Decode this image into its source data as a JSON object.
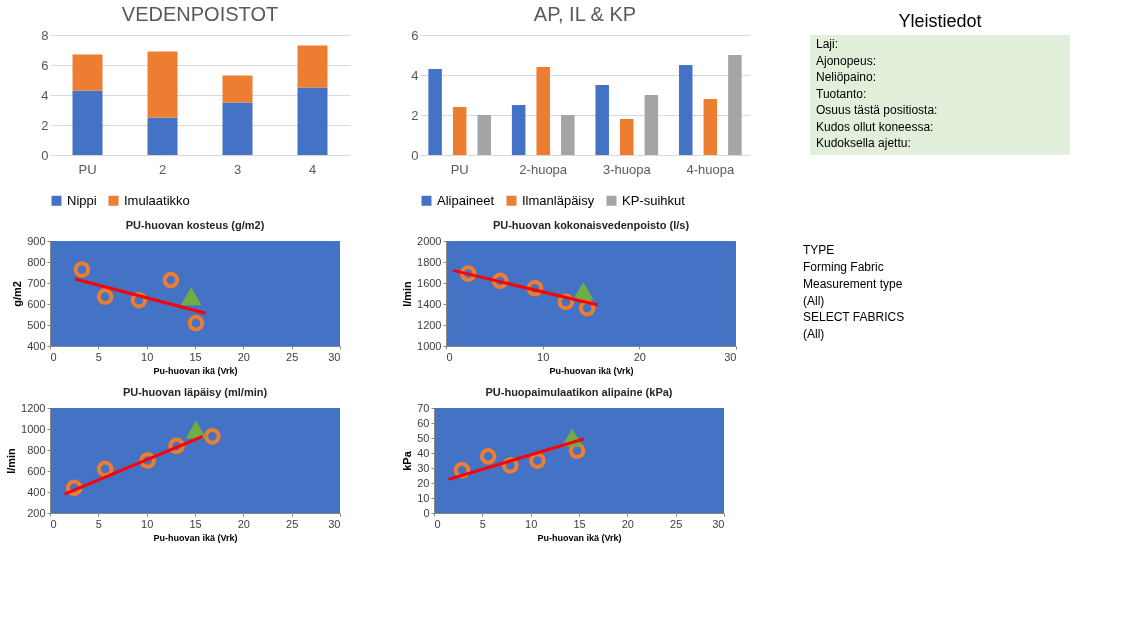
{
  "chart_data": [
    {
      "type": "bar",
      "title": "VEDENPOISTOT",
      "stacked": true,
      "categories": [
        "PU",
        "2",
        "3",
        "4"
      ],
      "ylim": [
        0,
        8
      ],
      "yticks": [
        0,
        2,
        4,
        6,
        8
      ],
      "grid": "y",
      "legend": "bottom",
      "series": [
        {
          "name": "Nippi",
          "color": "#4472c4",
          "values": [
            4.3,
            2.5,
            3.5,
            4.5
          ]
        },
        {
          "name": "Imulaatikko",
          "color": "#ed7d31",
          "values": [
            2.4,
            4.4,
            1.8,
            2.8
          ]
        }
      ]
    },
    {
      "type": "bar",
      "title": "AP, IL & KP",
      "categories": [
        "PU",
        "2-huopa",
        "3-huopa",
        "4-huopa"
      ],
      "ylim": [
        0,
        6
      ],
      "yticks": [
        0,
        2,
        4,
        6
      ],
      "grid": "y",
      "legend": "bottom",
      "series": [
        {
          "name": "Alipaineet",
          "color": "#4472c4",
          "values": [
            4.3,
            2.5,
            3.5,
            4.5
          ]
        },
        {
          "name": "Ilmanläpäisy",
          "color": "#ed7d31",
          "values": [
            2.4,
            4.4,
            1.8,
            2.8
          ]
        },
        {
          "name": "KP-suihkut",
          "color": "#a5a5a5",
          "values": [
            2,
            2,
            3,
            5
          ]
        }
      ]
    },
    {
      "type": "other",
      "title": "Yleistiedot",
      "annotations": [
        "Laji:",
        "Ajonopeus:",
        "Neliöpaino:",
        "Tuotanto:",
        "Osuus tästä positiosta:",
        "Kudos ollut koneessa:",
        "Kudoksella ajettu:"
      ]
    },
    {
      "type": "scatter",
      "title": "PU-huovan kosteus (g/m2)",
      "xlabel": "Pu-huovan ikä (Vrk)",
      "ylabel": "g/m2",
      "xlim": [
        0,
        30
      ],
      "xticks": [
        0,
        5,
        10,
        15,
        20,
        25,
        30
      ],
      "ylim": [
        400,
        900
      ],
      "yticks": [
        400,
        500,
        600,
        700,
        800,
        900
      ],
      "grid": false,
      "series": [
        {
          "type": "scatter",
          "marker": "circle",
          "color": "#ed7d31",
          "x": [
            3.3,
            5.7,
            9.2,
            12.5,
            15.1
          ],
          "values": [
            764,
            635,
            618,
            714,
            509
          ]
        },
        {
          "type": "scatter",
          "marker": "triangle",
          "color": "#70ad47",
          "x": [
            14.6
          ],
          "values": [
            635
          ]
        },
        {
          "type": "line",
          "color": "#ff0000",
          "x": [
            2.6,
            16.1
          ],
          "values": [
            719,
            556
          ]
        }
      ]
    },
    {
      "type": "scatter",
      "title": "PU-huovan kokonaisvedenpoisto (l/s)",
      "xlabel": "Pu-huovan ikä (Vrk)",
      "ylabel": "l/min",
      "xlim": [
        0,
        30
      ],
      "xticks": [
        0,
        10,
        20,
        30
      ],
      "ylim": [
        1000,
        2000
      ],
      "yticks": [
        1000,
        1200,
        1400,
        1600,
        1800,
        2000
      ],
      "grid": false,
      "series": [
        {
          "type": "scatter",
          "marker": "circle",
          "color": "#ed7d31",
          "x": [
            2.3,
            5.6,
            9.2,
            12.4,
            14.6
          ],
          "values": [
            1690,
            1620,
            1550,
            1420,
            1360
          ]
        },
        {
          "type": "scatter",
          "marker": "triangle",
          "color": "#70ad47",
          "x": [
            14.2
          ],
          "values": [
            1520
          ]
        },
        {
          "type": "line",
          "color": "#ff0000",
          "x": [
            0.7,
            15.7
          ],
          "values": [
            1720,
            1390
          ]
        }
      ]
    },
    {
      "type": "other",
      "annotations": [
        "TYPE",
        "Forming Fabric",
        "Measurement type",
        "(All)",
        "SELECT FABRICS",
        "(All)"
      ]
    },
    {
      "type": "scatter",
      "title": "PU-huovan läpäisy (ml/min)",
      "xlabel": "Pu-huovan ikä (Vrk)",
      "ylabel": "l/min",
      "xlim": [
        0,
        30
      ],
      "xticks": [
        0,
        5,
        10,
        15,
        20,
        25,
        30
      ],
      "ylim": [
        200,
        1200
      ],
      "yticks": [
        200,
        400,
        600,
        800,
        1000,
        1200
      ],
      "grid": false,
      "series": [
        {
          "type": "scatter",
          "marker": "circle",
          "color": "#ed7d31",
          "x": [
            2.5,
            5.7,
            10.1,
            13.1,
            16.8
          ],
          "values": [
            440,
            620,
            700,
            840,
            930
          ]
        },
        {
          "type": "scatter",
          "marker": "triangle",
          "color": "#70ad47",
          "x": [
            15.1
          ],
          "values": [
            990
          ]
        },
        {
          "type": "line",
          "color": "#ff0000",
          "x": [
            1.5,
            15.8
          ],
          "values": [
            380,
            930
          ]
        }
      ]
    },
    {
      "type": "scatter",
      "title": "PU-huopaimulaatikon alipaine (kPa)",
      "xlabel": "Pu-huovan ikä (Vrk)",
      "ylabel": "kPa",
      "xlim": [
        0,
        30
      ],
      "xticks": [
        0,
        5,
        10,
        15,
        20,
        25,
        30
      ],
      "ylim": [
        0,
        70
      ],
      "yticks": [
        0,
        10,
        20,
        30,
        40,
        50,
        60,
        70
      ],
      "grid": false,
      "series": [
        {
          "type": "scatter",
          "marker": "circle",
          "color": "#ed7d31",
          "x": [
            2.9,
            5.6,
            7.9,
            10.7,
            14.8
          ],
          "values": [
            28.5,
            37.8,
            31.7,
            34.9,
            41.5
          ]
        },
        {
          "type": "scatter",
          "marker": "triangle",
          "color": "#70ad47",
          "x": [
            14.3
          ],
          "values": [
            50
          ]
        },
        {
          "type": "line",
          "color": "#ff0000",
          "x": [
            1.5,
            15.5
          ],
          "values": [
            22.4,
            49.3
          ]
        }
      ]
    }
  ]
}
